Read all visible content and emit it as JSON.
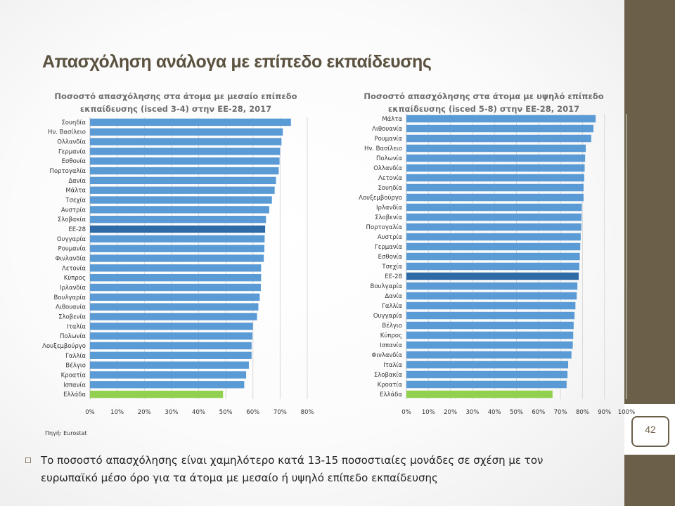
{
  "slide": {
    "title": "Απασχόληση ανάλογα με επίπεδο εκπαίδευσης",
    "source": "Πηγή: Eurostat",
    "bullet_text": "Το ποσοστό απασχόλησης είναι χαμηλότερο κατά 13-15 ποσοστιαίες μονάδες σε σχέση με τον ευρωπαϊκό μέσο όρο για τα άτομα με μεσαίο ή υψηλό επίπεδο εκπαίδευσης",
    "page_number": "42"
  },
  "colors": {
    "bar": "#5b9bd5",
    "eu_bar": "#2e6aa6",
    "greece_bar": "#92d050",
    "gridline": "#d9d9d9",
    "brand_sidebar": "#6b5f49"
  },
  "chart_data": [
    {
      "type": "bar",
      "orientation": "horizontal",
      "title_line1": "Ποσοστό απασχόλησης στα άτομα με μεσαίο επίπεδο",
      "title_line2": "εκπαίδευσης (isced 3-4) στην ΕΕ-28, 2017",
      "categories": [
        "Σουηδία",
        "Ην. Βασίλειο",
        "Ολλανδία",
        "Γερμανία",
        "Εσθονία",
        "Πορτογαλία",
        "Δανία",
        "Μάλτα",
        "Τσεχία",
        "Αυστρία",
        "Σλοβακία",
        "ΕΕ-28",
        "Ουγγαρία",
        "Ρουμανία",
        "Φινλανδία",
        "Λετονία",
        "Κύπρος",
        "Ιρλανδία",
        "Βουλγαρία",
        "Λιθουανία",
        "Σλοβενία",
        "Ιταλία",
        "Πολωνία",
        "Λουξεμβούργο",
        "Γαλλία",
        "Βέλγιο",
        "Κροατία",
        "Ισπανία",
        "Ελλάδα"
      ],
      "values": [
        74.0,
        71.0,
        70.5,
        70.0,
        69.8,
        69.5,
        68.5,
        68.0,
        67.0,
        66.0,
        64.8,
        64.5,
        64.3,
        64.2,
        64.0,
        63.0,
        63.0,
        62.9,
        62.5,
        62.0,
        61.5,
        60.0,
        59.8,
        59.5,
        59.5,
        58.5,
        57.5,
        56.8,
        49.0
      ],
      "highlight": {
        "ΕΕ-28": "eu",
        "Ελλάδα": "greece"
      },
      "xlim": [
        0,
        80
      ],
      "ticks": [
        "0%",
        "10%",
        "20%",
        "30%",
        "40%",
        "50%",
        "60%",
        "70%",
        "80%"
      ],
      "xlabel": "",
      "ylabel": "",
      "grid": true
    },
    {
      "type": "bar",
      "orientation": "horizontal",
      "title_line1": "Ποσοστό απασχόλησης στα άτομα με υψηλό επίπεδο",
      "title_line2": "εκπαίδευσης (isced 5-8) στην ΕΕ-28, 2017",
      "categories": [
        "Μάλτα",
        "Λιθουανία",
        "Ρουμανία",
        "Ην. Βασίλειο",
        "Πολωνία",
        "Ολλανδία",
        "Λετονία",
        "Σουηδία",
        "Λουξεμβούργο",
        "Ιρλανδία",
        "Σλοβενία",
        "Πορτογαλία",
        "Αυστρία",
        "Γερμανία",
        "Εσθονία",
        "Τσεχία",
        "ΕΕ-28",
        "Βουλγαρία",
        "Δανία",
        "Γαλλία",
        "Ουγγαρία",
        "Βέλγιο",
        "Κύπρος",
        "Ισπανία",
        "Φινλανδία",
        "Ιταλία",
        "Σλοβακία",
        "Κροατία",
        "Ελλάδα"
      ],
      "values": [
        86.0,
        85.0,
        84.0,
        81.5,
        81.2,
        81.0,
        80.8,
        80.5,
        80.5,
        79.7,
        79.6,
        79.5,
        79.2,
        79.0,
        78.8,
        78.6,
        78.3,
        77.7,
        77.4,
        76.8,
        76.4,
        76.0,
        75.8,
        75.6,
        75.0,
        73.5,
        73.2,
        72.8,
        66.4
      ],
      "highlight": {
        "ΕΕ-28": "eu",
        "Ελλάδα": "greece"
      },
      "xlim": [
        0,
        100
      ],
      "ticks": [
        "0%",
        "10%",
        "20%",
        "30%",
        "40%",
        "50%",
        "60%",
        "70%",
        "80%",
        "90%",
        "100%"
      ],
      "xlabel": "",
      "ylabel": "",
      "grid": true
    }
  ]
}
